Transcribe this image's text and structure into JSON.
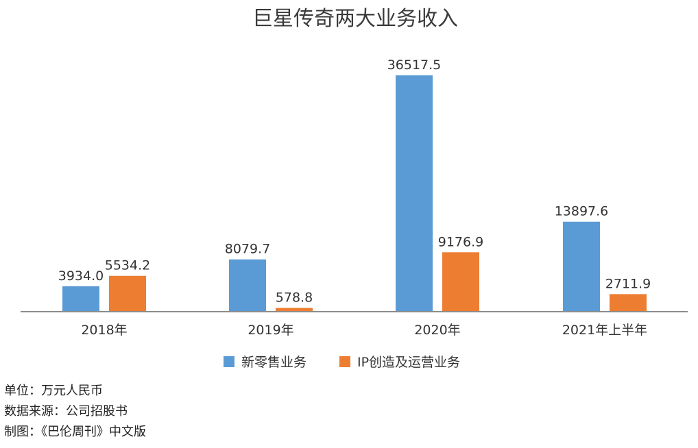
{
  "chart_data": {
    "type": "bar",
    "title": "巨星传奇两大业务收入",
    "categories": [
      "2018年",
      "2019年",
      "2020年",
      "2021年上半年"
    ],
    "series": [
      {
        "name": "新零售业务",
        "values": [
          3934.0,
          8079.7,
          36517.5,
          13897.6
        ],
        "labels": [
          "3934.0",
          "8079.7",
          "36517.5",
          "13897.6"
        ]
      },
      {
        "name": "IP创造及运营业务",
        "values": [
          5534.2,
          578.8,
          9176.9,
          2711.9
        ],
        "labels": [
          "5534.2",
          "578.8",
          "9176.9",
          "2711.9"
        ]
      }
    ],
    "colors": [
      "#5B9BD5",
      "#ED7D31"
    ],
    "ylim": [
      0,
      36517.5
    ],
    "grid": false,
    "legend": "bottom-center"
  },
  "notes": {
    "unit": "单位：万元人民币",
    "source": "数据来源：公司招股书",
    "credit": "制图：《巴伦周刊》中文版"
  }
}
